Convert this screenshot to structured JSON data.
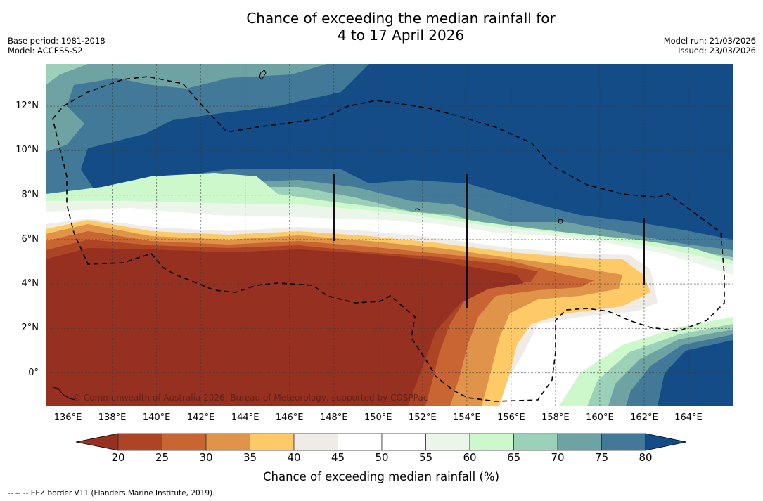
{
  "title": {
    "line1": "Chance of exceeding the median rainfall for",
    "line2": "4 to 17 April 2026"
  },
  "meta_left": {
    "base_period": "Base period: 1981-2018",
    "model": "Model: ACCESS-S2"
  },
  "meta_right": {
    "model_run": "Model run: 21/03/2026",
    "issued": "Issued: 23/03/2026"
  },
  "map": {
    "lat_range": [
      -1.5,
      13.9
    ],
    "lon_range": [
      135,
      166
    ],
    "lat_labels": [
      {
        "value": 12,
        "text": "12°N"
      },
      {
        "value": 10,
        "text": "10°N"
      },
      {
        "value": 8,
        "text": "8°N"
      },
      {
        "value": 6,
        "text": "6°N"
      },
      {
        "value": 4,
        "text": "4°N"
      },
      {
        "value": 2,
        "text": "2°N"
      },
      {
        "value": 0,
        "text": "0°"
      }
    ],
    "lon_labels": [
      {
        "value": 136,
        "text": "136°E"
      },
      {
        "value": 138,
        "text": "138°E"
      },
      {
        "value": 140,
        "text": "140°E"
      },
      {
        "value": 142,
        "text": "142°E"
      },
      {
        "value": 144,
        "text": "144°E"
      },
      {
        "value": 146,
        "text": "146°E"
      },
      {
        "value": 148,
        "text": "148°E"
      },
      {
        "value": 150,
        "text": "150°E"
      },
      {
        "value": 152,
        "text": "152°E"
      },
      {
        "value": 154,
        "text": "154°E"
      },
      {
        "value": 156,
        "text": "156°E"
      },
      {
        "value": 158,
        "text": "158°E"
      },
      {
        "value": 160,
        "text": "160°E"
      },
      {
        "value": 162,
        "text": "162°E"
      },
      {
        "value": 164,
        "text": "164°E"
      }
    ],
    "copyright": "© Commonwealth of Australia 2026, Bureau of Meteorology, supported by COSPPac"
  },
  "colorbar": {
    "label": "Chance of exceeding median rainfall (%)",
    "ticks": [
      "20",
      "25",
      "30",
      "35",
      "40",
      "45",
      "50",
      "55",
      "60",
      "65",
      "70",
      "75",
      "80"
    ],
    "under_color": "#963020",
    "over_color": "#134c86",
    "bins": [
      {
        "range": "20-25",
        "color": "#ad4425"
      },
      {
        "range": "25-30",
        "color": "#c96433"
      },
      {
        "range": "30-35",
        "color": "#df944a"
      },
      {
        "range": "35-40",
        "color": "#fdca67"
      },
      {
        "range": "40-45",
        "color": "#efebe7"
      },
      {
        "range": "45-50",
        "color": "#ffffff"
      },
      {
        "range": "50-55",
        "color": "#ffffff"
      },
      {
        "range": "55-60",
        "color": "#ebf5e9"
      },
      {
        "range": "60-65",
        "color": "#ccf8cb"
      },
      {
        "range": "65-70",
        "color": "#9dd0b8"
      },
      {
        "range": "70-75",
        "color": "#6ea2a3"
      },
      {
        "range": "75-80",
        "color": "#427998"
      }
    ]
  },
  "footnote": "--  --  -- EEZ border V11 (Flanders Marine Institute, 2019)."
}
